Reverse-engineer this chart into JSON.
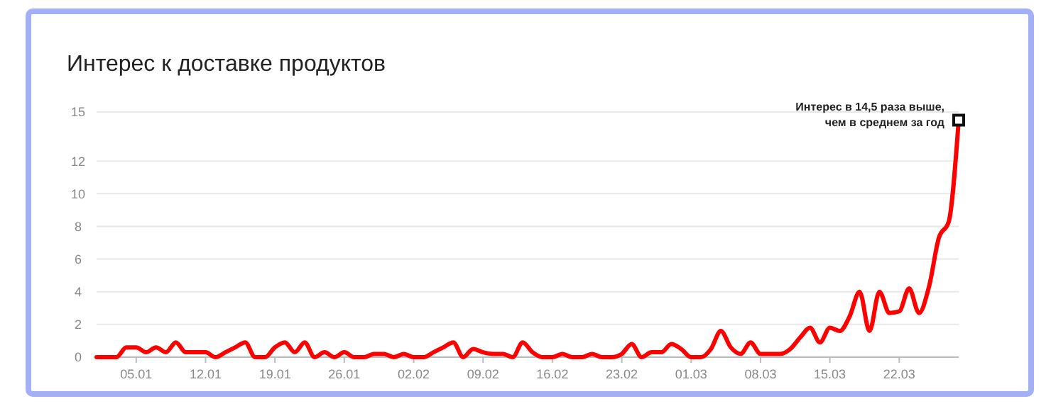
{
  "chart_data": {
    "type": "line",
    "title": "Интерес к доставке продуктов",
    "x": [
      "--01-01",
      "--01-02",
      "--01-03",
      "--01-04",
      "--01-05",
      "--01-06",
      "--01-07",
      "--01-08",
      "--01-09",
      "--01-10",
      "--01-11",
      "--01-12",
      "--01-13",
      "--01-14",
      "--01-15",
      "--01-16",
      "--01-17",
      "--01-18",
      "--01-19",
      "--01-20",
      "--01-21",
      "--01-22",
      "--01-23",
      "--01-24",
      "--01-25",
      "--01-26",
      "--01-27",
      "--01-28",
      "--01-29",
      "--01-30",
      "--01-31",
      "--02-01",
      "--02-02",
      "--02-03",
      "--02-04",
      "--02-05",
      "--02-06",
      "--02-07",
      "--02-08",
      "--02-09",
      "--02-10",
      "--02-11",
      "--02-12",
      "--02-13",
      "--02-14",
      "--02-15",
      "--02-16",
      "--02-17",
      "--02-18",
      "--02-19",
      "--02-20",
      "--02-21",
      "--02-22",
      "--02-23",
      "--02-24",
      "--02-25",
      "--02-26",
      "--02-27",
      "--02-28",
      "--02-29",
      "--03-01",
      "--03-02",
      "--03-03",
      "--03-04",
      "--03-05",
      "--03-06",
      "--03-07",
      "--03-08",
      "--03-09",
      "--03-10",
      "--03-11",
      "--03-12",
      "--03-13",
      "--03-14",
      "--03-15",
      "--03-16",
      "--03-17",
      "--03-18",
      "--03-19",
      "--03-20",
      "--03-21",
      "--03-22",
      "--03-23",
      "--03-24",
      "--03-25",
      "--03-26",
      "--03-27",
      "--03-28"
    ],
    "series": [
      {
        "color": "#ff0000",
        "values": [
          0,
          0,
          0,
          0.6,
          0.6,
          0.3,
          0.6,
          0.3,
          0.9,
          0.3,
          0.3,
          0.3,
          0,
          0.3,
          0.6,
          0.9,
          0,
          0,
          0.6,
          0.9,
          0.3,
          0.9,
          0,
          0.3,
          0,
          0.3,
          0,
          0,
          0.2,
          0.2,
          0,
          0.2,
          0,
          0,
          0.3,
          0.6,
          0.9,
          0,
          0.5,
          0.3,
          0.2,
          0.2,
          0,
          0.9,
          0.3,
          0,
          0,
          0.2,
          0,
          0,
          0.2,
          0,
          0,
          0.2,
          0.8,
          0,
          0.3,
          0.3,
          0.8,
          0.5,
          0,
          0,
          0.5,
          1.6,
          0.6,
          0.2,
          0.9,
          0.2,
          0.2,
          0.2,
          0.5,
          1.2,
          1.8,
          0.9,
          1.8,
          1.6,
          2.5,
          4,
          1.6,
          4,
          2.7,
          2.8,
          4.2,
          2.7,
          4.3,
          7.3,
          8.3,
          14.5
        ]
      }
    ],
    "xlim": [
      "--01-01",
      "--03-28"
    ],
    "xticks": [
      {
        "value": "--01-05",
        "label": "05.01"
      },
      {
        "value": "--01-12",
        "label": "12.01"
      },
      {
        "value": "--01-19",
        "label": "19.01"
      },
      {
        "value": "--01-26",
        "label": "26.01"
      },
      {
        "value": "--02-02",
        "label": "02.02"
      },
      {
        "value": "--02-09",
        "label": "09.02"
      },
      {
        "value": "--02-16",
        "label": "16.02"
      },
      {
        "value": "--02-23",
        "label": "23.02"
      },
      {
        "value": "--03-01",
        "label": "01.03"
      },
      {
        "value": "--03-08",
        "label": "08.03"
      },
      {
        "value": "--03-15",
        "label": "15.03"
      },
      {
        "value": "--03-22",
        "label": "22.03"
      }
    ],
    "ylim": [
      0,
      15
    ],
    "yticks": [
      0,
      2,
      4,
      6,
      8,
      10,
      12,
      15
    ],
    "grid": "y",
    "annotations": [
      {
        "text": "Интерес в 14,5 раза выше, чем в среднем за год",
        "x": "--03-28",
        "y": 14.5
      }
    ]
  }
}
